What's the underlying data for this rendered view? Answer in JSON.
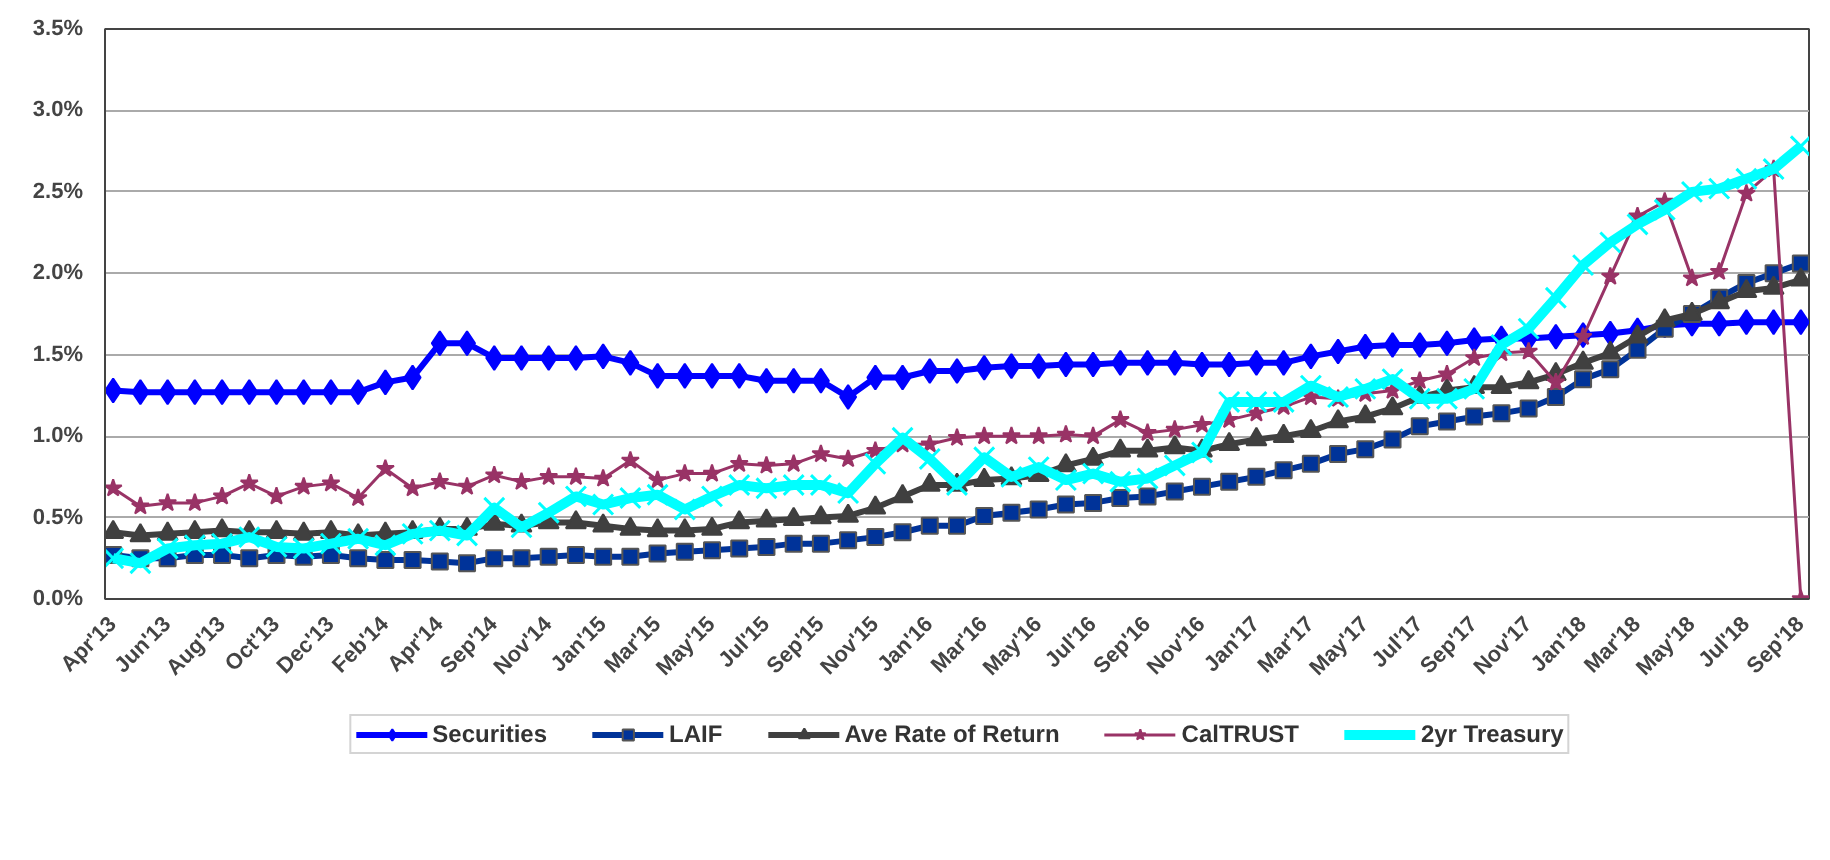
{
  "chart_data": {
    "type": "line",
    "categories": [
      "Apr'13",
      null,
      "Jun'13",
      null,
      "Aug'13",
      null,
      "Oct'13",
      null,
      "Dec'13",
      null,
      "Feb'14",
      null,
      "Apr'14",
      null,
      "Sep'14",
      null,
      "Nov'14",
      null,
      "Jan'15",
      null,
      "Mar'15",
      null,
      "May'15",
      null,
      "Jul'15",
      null,
      "Sep'15",
      null,
      "Nov'15",
      null,
      "Jan'16",
      null,
      "Mar'16",
      null,
      "May'16",
      null,
      "Jul'16",
      null,
      "Sep'16",
      null,
      "Nov'16",
      null,
      "Jan'17",
      null,
      "Mar'17",
      null,
      "May'17",
      null,
      "Jul'17",
      null,
      "Sep'17",
      null,
      "Nov'17",
      null,
      "Jan'18",
      null,
      "Mar'18",
      null,
      "May'18",
      null,
      "Jul'18",
      null,
      "Sep'18"
    ],
    "series": [
      {
        "name": "Securities",
        "color": "#0000ff",
        "marker": "diamond",
        "values": [
          1.28,
          1.27,
          1.27,
          1.27,
          1.27,
          1.27,
          1.27,
          1.27,
          1.27,
          1.27,
          1.33,
          1.36,
          1.57,
          1.57,
          1.48,
          1.48,
          1.48,
          1.48,
          1.49,
          1.45,
          1.37,
          1.37,
          1.37,
          1.37,
          1.34,
          1.34,
          1.34,
          1.24,
          1.36,
          1.36,
          1.4,
          1.4,
          1.42,
          1.43,
          1.43,
          1.44,
          1.44,
          1.45,
          1.45,
          1.45,
          1.44,
          1.44,
          1.45,
          1.45,
          1.49,
          1.52,
          1.55,
          1.56,
          1.56,
          1.57,
          1.59,
          1.6,
          1.6,
          1.61,
          1.62,
          1.63,
          1.65,
          1.68,
          1.69,
          1.69,
          1.7,
          1.7,
          1.7
        ]
      },
      {
        "name": "LAIF",
        "color": "#003399",
        "marker": "square",
        "values": [
          0.27,
          0.25,
          0.25,
          0.27,
          0.27,
          0.25,
          0.27,
          0.26,
          0.27,
          0.25,
          0.24,
          0.24,
          0.23,
          0.22,
          0.25,
          0.25,
          0.26,
          0.27,
          0.26,
          0.26,
          0.28,
          0.29,
          0.3,
          0.31,
          0.32,
          0.34,
          0.34,
          0.36,
          0.38,
          0.41,
          0.45,
          0.45,
          0.51,
          0.53,
          0.55,
          0.58,
          0.59,
          0.62,
          0.63,
          0.66,
          0.69,
          0.72,
          0.75,
          0.79,
          0.83,
          0.89,
          0.92,
          0.98,
          1.06,
          1.09,
          1.12,
          1.14,
          1.17,
          1.24,
          1.35,
          1.41,
          1.53,
          1.66,
          1.75,
          1.85,
          1.94,
          2.0,
          2.06
        ]
      },
      {
        "name": "Ave Rate of Return",
        "color": "#404040",
        "marker": "triangle",
        "values": [
          0.41,
          0.39,
          0.4,
          0.41,
          0.42,
          0.41,
          0.41,
          0.4,
          0.41,
          0.39,
          0.4,
          0.41,
          0.43,
          0.43,
          0.46,
          0.45,
          0.47,
          0.47,
          0.45,
          0.43,
          0.42,
          0.42,
          0.43,
          0.47,
          0.48,
          0.49,
          0.5,
          0.51,
          0.56,
          0.63,
          0.7,
          0.7,
          0.73,
          0.74,
          0.76,
          0.82,
          0.86,
          0.91,
          0.91,
          0.93,
          0.91,
          0.95,
          0.98,
          1.0,
          1.03,
          1.09,
          1.12,
          1.17,
          1.24,
          1.28,
          1.3,
          1.3,
          1.33,
          1.38,
          1.45,
          1.51,
          1.61,
          1.71,
          1.75,
          1.82,
          1.89,
          1.91,
          1.96
        ]
      },
      {
        "name": "CalTRUST",
        "color": "#993366",
        "marker": "star",
        "values": [
          0.68,
          0.57,
          0.59,
          0.59,
          0.63,
          0.71,
          0.63,
          0.69,
          0.71,
          0.62,
          0.8,
          0.68,
          0.72,
          0.69,
          0.76,
          0.72,
          0.75,
          0.75,
          0.74,
          0.85,
          0.73,
          0.77,
          0.77,
          0.83,
          0.82,
          0.83,
          0.89,
          0.86,
          0.91,
          0.95,
          0.95,
          0.99,
          1.0,
          1.0,
          1.0,
          1.01,
          1.0,
          1.1,
          1.02,
          1.04,
          1.07,
          1.1,
          1.14,
          1.18,
          1.24,
          1.23,
          1.26,
          1.28,
          1.34,
          1.38,
          1.48,
          1.51,
          1.52,
          1.33,
          1.61,
          1.98,
          2.35,
          2.44,
          1.97,
          2.01,
          2.49,
          2.64,
          0
        ]
      },
      {
        "name": "2yr Treasury",
        "color": "#00ffff",
        "marker": "cross",
        "values": [
          0.25,
          0.22,
          0.31,
          0.33,
          0.34,
          0.38,
          0.32,
          0.31,
          0.34,
          0.37,
          0.33,
          0.4,
          0.42,
          0.39,
          0.56,
          0.44,
          0.53,
          0.63,
          0.58,
          0.62,
          0.64,
          0.55,
          0.63,
          0.7,
          0.68,
          0.7,
          0.7,
          0.65,
          0.83,
          0.99,
          0.86,
          0.7,
          0.87,
          0.75,
          0.81,
          0.73,
          0.77,
          0.72,
          0.74,
          0.82,
          0.9,
          1.21,
          1.21,
          1.21,
          1.31,
          1.24,
          1.29,
          1.35,
          1.23,
          1.23,
          1.29,
          1.56,
          1.66,
          1.85,
          2.05,
          2.19,
          2.3,
          2.39,
          2.5,
          2.52,
          2.58,
          2.64,
          2.78
        ]
      }
    ],
    "ylim": [
      0,
      3.5
    ],
    "yticks": [
      {
        "value": 0,
        "label": "0.0%"
      },
      {
        "value": 0.5,
        "label": "0.5%"
      },
      {
        "value": 1,
        "label": "1.0%"
      },
      {
        "value": 1.5,
        "label": "1.5%"
      },
      {
        "value": 2,
        "label": "2.0%"
      },
      {
        "value": 2.5,
        "label": "2.5%"
      },
      {
        "value": 3,
        "label": "3.0%"
      },
      {
        "value": 3.5,
        "label": "3.5%"
      }
    ],
    "grid": "y",
    "legend": "bottom"
  }
}
